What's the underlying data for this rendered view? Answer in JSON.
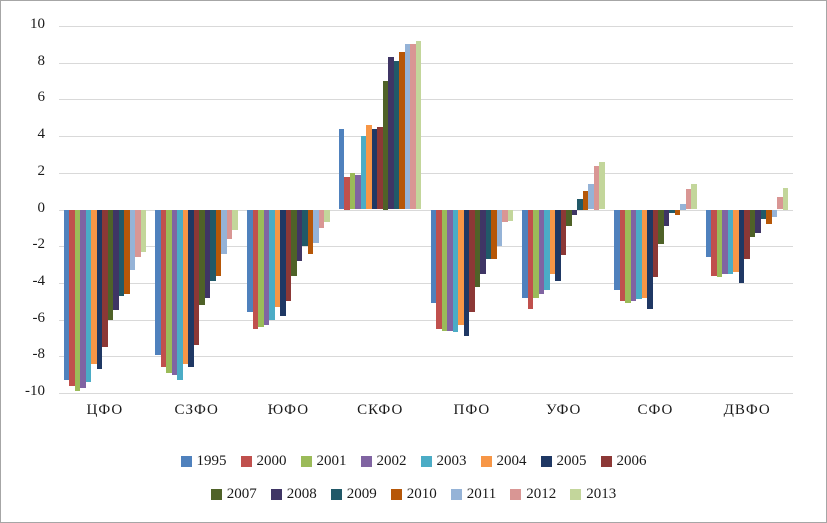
{
  "chart": {
    "background": "#FFFFFF",
    "frame_border_color": "#A6A6A6",
    "gridline_color": "#D9D9D9",
    "ytick_labels": [
      "10",
      "8",
      "6",
      "4",
      "2",
      "0",
      "-2",
      "-4",
      "-6",
      "-8",
      "-10"
    ]
  },
  "chart_data": {
    "type": "bar",
    "title": "",
    "xlabel": "",
    "ylabel": "",
    "ylim": [
      -10,
      10
    ],
    "ytick_step": 2,
    "grid": true,
    "legend_position": "bottom",
    "categories": [
      "ЦФО",
      "СЗФО",
      "ЮФО",
      "СКФО",
      "ПФО",
      "УФО",
      "СФО",
      "ДВФО"
    ],
    "series": [
      {
        "name": "1995",
        "color": "#4F81BD",
        "values": [
          -9.3,
          -7.9,
          -5.6,
          4.4,
          -5.1,
          -4.8,
          -4.4,
          -2.6
        ]
      },
      {
        "name": "2000",
        "color": "#C0504D",
        "values": [
          -9.6,
          -8.6,
          -6.5,
          1.8,
          -6.5,
          -5.4,
          -5.0,
          -3.6
        ]
      },
      {
        "name": "2001",
        "color": "#9BBB59",
        "values": [
          -9.9,
          -8.9,
          -6.4,
          2.0,
          -6.6,
          -4.8,
          -5.1,
          -3.7
        ]
      },
      {
        "name": "2002",
        "color": "#8064A2",
        "values": [
          -9.7,
          -9.0,
          -6.3,
          1.9,
          -6.6,
          -4.6,
          -5.0,
          -3.5
        ]
      },
      {
        "name": "2003",
        "color": "#4BACC6",
        "values": [
          -9.4,
          -9.3,
          -6.0,
          4.0,
          -6.7,
          -4.4,
          -4.9,
          -3.5
        ]
      },
      {
        "name": "2004",
        "color": "#F79646",
        "values": [
          -8.4,
          -8.4,
          -5.3,
          4.6,
          -6.3,
          -3.5,
          -4.8,
          -3.4
        ]
      },
      {
        "name": "2005",
        "color": "#1F3864",
        "values": [
          -8.7,
          -8.6,
          -5.8,
          4.4,
          -6.9,
          -3.9,
          -5.4,
          -4.0
        ]
      },
      {
        "name": "2006",
        "color": "#8C3836",
        "values": [
          -7.5,
          -7.4,
          -5.0,
          4.5,
          -5.6,
          -2.5,
          -3.7,
          -2.7
        ]
      },
      {
        "name": "2007",
        "color": "#4F6228",
        "values": [
          -6.0,
          -5.2,
          -3.6,
          7.0,
          -4.2,
          -0.9,
          -1.9,
          -1.5
        ]
      },
      {
        "name": "2008",
        "color": "#3F3565",
        "values": [
          -5.5,
          -4.8,
          -2.8,
          8.3,
          -3.5,
          -0.3,
          -0.9,
          -1.3
        ]
      },
      {
        "name": "2009",
        "color": "#215968",
        "values": [
          -4.7,
          -3.9,
          -2.0,
          8.1,
          -2.7,
          0.6,
          -0.2,
          -0.5
        ]
      },
      {
        "name": "2010",
        "color": "#B65708",
        "values": [
          -4.6,
          -3.6,
          -2.4,
          8.6,
          -2.7,
          1.0,
          -0.3,
          -0.8
        ]
      },
      {
        "name": "2011",
        "color": "#95B3D7",
        "values": [
          -3.3,
          -2.4,
          -1.8,
          9.0,
          -2.0,
          1.4,
          0.3,
          -0.4
        ]
      },
      {
        "name": "2012",
        "color": "#D99694",
        "values": [
          -2.6,
          -1.6,
          -1.0,
          9.0,
          -0.7,
          2.4,
          1.1,
          0.7
        ]
      },
      {
        "name": "2013",
        "color": "#C3D69B",
        "values": [
          -2.3,
          -1.1,
          -0.7,
          9.2,
          -0.6,
          2.6,
          1.4,
          1.2
        ]
      }
    ],
    "legend_rows": [
      [
        "1995",
        "2000",
        "2001",
        "2002",
        "2003",
        "2004",
        "2005",
        "2006"
      ],
      [
        "2007",
        "2008",
        "2009",
        "2010",
        "2011",
        "2012",
        "2013"
      ]
    ]
  }
}
